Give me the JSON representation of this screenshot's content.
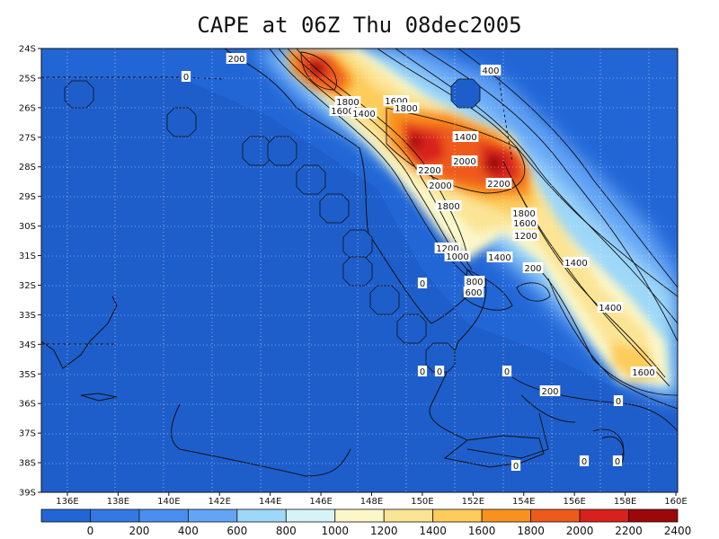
{
  "title": "CAPE at 06Z Thu 08dec2005",
  "x_ticks": [
    "136E",
    "138E",
    "140E",
    "142E",
    "144E",
    "146E",
    "148E",
    "150E",
    "152E",
    "154E",
    "156E",
    "158E",
    "160E"
  ],
  "y_ticks": [
    "24S",
    "25S",
    "26S",
    "27S",
    "28S",
    "29S",
    "30S",
    "31S",
    "32S",
    "33S",
    "34S",
    "35S",
    "36S",
    "37S",
    "38S",
    "39S"
  ],
  "colorbar": {
    "labels": [
      "0",
      "200",
      "400",
      "600",
      "800",
      "1000",
      "1200",
      "1400",
      "1600",
      "1800",
      "2000",
      "2200",
      "2400"
    ],
    "colors": [
      "#2266d6",
      "#3478e4",
      "#4a8ef0",
      "#64a4f6",
      "#9ed8f8",
      "#d6f4f8",
      "#fbf7c8",
      "#fbe494",
      "#fdcc5a",
      "#f8921e",
      "#ee5a1c",
      "#d8201c",
      "#9c0808"
    ]
  },
  "contour_labels": [
    "200",
    "0",
    "400",
    "1800",
    "1600",
    "1400",
    "1600",
    "1800",
    "1400",
    "2000",
    "2200",
    "2200",
    "2000",
    "1800",
    "1800",
    "1600",
    "1200",
    "1200",
    "1000",
    "1400",
    "1400",
    "200",
    "0",
    "800",
    "600",
    "1400",
    "1600",
    "0",
    "0",
    "0",
    "200",
    "0",
    "0",
    "0",
    "0"
  ],
  "map_data": {
    "variable": "CAPE",
    "time": "06Z Thu 08dec2005",
    "lon_range": [
      135.5,
      160
    ],
    "lat_range": [
      -39,
      -24
    ],
    "contour_interval": 200
  }
}
